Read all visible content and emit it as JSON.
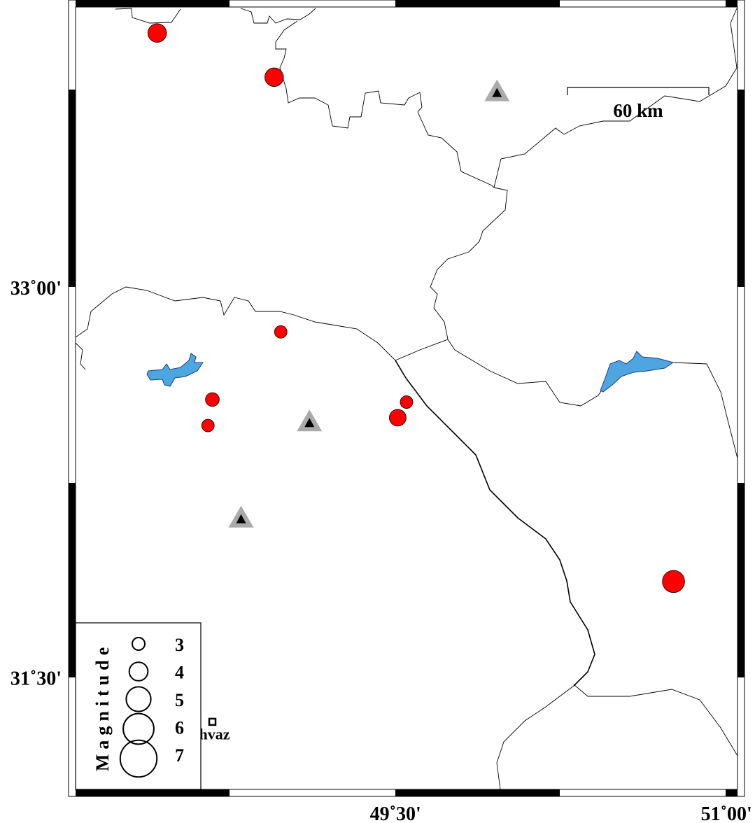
{
  "map": {
    "bounds": {
      "lon_min": 48.05,
      "lon_max": 51.05,
      "lat_min": 31.07,
      "lat_max": 34.08
    },
    "tick_labels": {
      "lat": [
        {
          "value": 33.0,
          "label": "33˚00'"
        },
        {
          "value": 31.5,
          "label": "31˚30'"
        }
      ],
      "lon": [
        {
          "value": 49.5,
          "label": "49˚30'"
        },
        {
          "value": 51.0,
          "label": "51˚00'"
        }
      ]
    },
    "scale_bar": {
      "label": "60 km"
    },
    "colors": {
      "event": "#ff0000",
      "lake": "#4da6e0",
      "station_outer": "#aaaaaa",
      "station_inner": "#000000",
      "boundary": "#000000"
    },
    "events": [
      {
        "lon": 48.42,
        "lat": 33.98,
        "mag": 4.0
      },
      {
        "lon": 48.95,
        "lat": 33.81,
        "mag": 4.0
      },
      {
        "lon": 48.98,
        "lat": 32.83,
        "mag": 3.0
      },
      {
        "lon": 48.67,
        "lat": 32.57,
        "mag": 3.2
      },
      {
        "lon": 48.65,
        "lat": 32.47,
        "mag": 3.0
      },
      {
        "lon": 49.55,
        "lat": 32.56,
        "mag": 3.0
      },
      {
        "lon": 49.51,
        "lat": 32.5,
        "mag": 3.7
      },
      {
        "lon": 50.76,
        "lat": 31.87,
        "mag": 4.6
      }
    ],
    "stations": [
      {
        "lon": 49.96,
        "lat": 33.75,
        "type": "triangle"
      },
      {
        "lon": 49.11,
        "lat": 32.48,
        "type": "triangle"
      },
      {
        "lon": 48.8,
        "lat": 32.11,
        "type": "triangle"
      }
    ],
    "city": {
      "lon": 48.67,
      "lat": 31.33,
      "label": "hvaz"
    }
  },
  "legend": {
    "title": "Magnitude",
    "items": [
      {
        "mag": 3,
        "label": "3"
      },
      {
        "mag": 4,
        "label": "4"
      },
      {
        "mag": 5,
        "label": "5"
      },
      {
        "mag": 6,
        "label": "6"
      },
      {
        "mag": 7,
        "label": "7"
      }
    ]
  }
}
